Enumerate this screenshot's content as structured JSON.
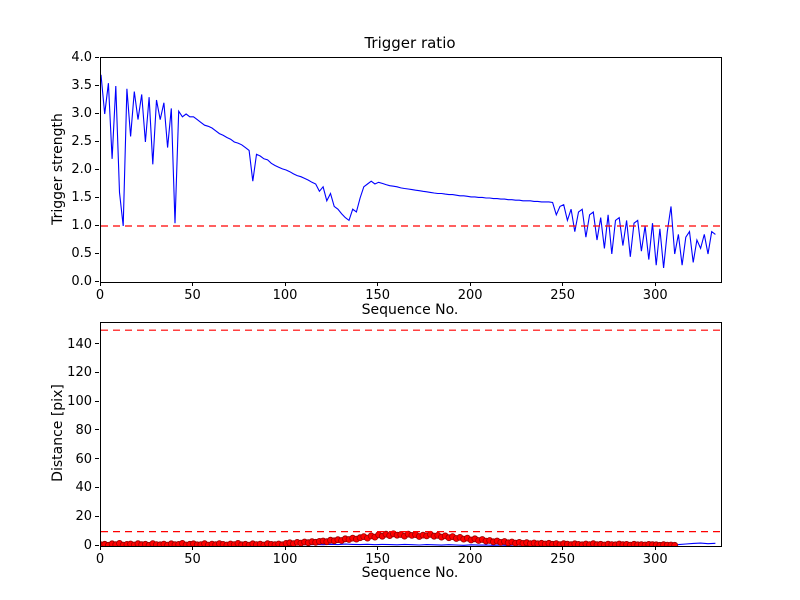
{
  "figure": {
    "background": "#ffffff"
  },
  "chart_data": [
    {
      "type": "line",
      "title": "Trigger ratio",
      "xlabel": "Sequence No.",
      "ylabel": "Trigger strength",
      "xlim": [
        0,
        335
      ],
      "ylim": [
        0,
        4
      ],
      "grid": false,
      "legend": "none",
      "xticks": {
        "values": [
          0,
          50,
          100,
          150,
          200,
          250,
          300
        ],
        "labels": [
          "0",
          "50",
          "100",
          "150",
          "200",
          "250",
          "300"
        ]
      },
      "yticks": {
        "values": [
          0,
          0.5,
          1,
          1.5,
          2,
          2.5,
          3,
          3.5,
          4
        ],
        "labels": [
          "0.0",
          "0.5",
          "1.0",
          "1.5",
          "2.0",
          "2.5",
          "3.0",
          "3.5",
          "4.0"
        ]
      },
      "thresholds": [
        {
          "y": 1.0,
          "color": "#ff0000",
          "style": "dashed"
        }
      ],
      "series": [
        {
          "name": "trigger-strength",
          "style": "line",
          "color": "#0000ff",
          "x_start": 0,
          "x_step": 2,
          "y": [
            3.7,
            3.0,
            3.55,
            2.2,
            3.5,
            1.6,
            1.0,
            3.45,
            2.6,
            3.4,
            2.9,
            3.35,
            2.5,
            3.3,
            2.1,
            3.25,
            2.9,
            3.2,
            2.4,
            3.1,
            1.05,
            3.05,
            2.95,
            3.0,
            2.95,
            2.95,
            2.9,
            2.85,
            2.8,
            2.78,
            2.75,
            2.7,
            2.65,
            2.62,
            2.58,
            2.55,
            2.5,
            2.48,
            2.45,
            2.4,
            2.35,
            1.8,
            2.28,
            2.25,
            2.2,
            2.18,
            2.12,
            2.08,
            2.05,
            2.02,
            2.0,
            1.97,
            1.93,
            1.9,
            1.88,
            1.85,
            1.82,
            1.78,
            1.75,
            1.62,
            1.7,
            1.45,
            1.58,
            1.35,
            1.3,
            1.22,
            1.15,
            1.1,
            1.3,
            1.25,
            1.5,
            1.7,
            1.75,
            1.8,
            1.75,
            1.78,
            1.76,
            1.74,
            1.72,
            1.71,
            1.7,
            1.68,
            1.67,
            1.66,
            1.65,
            1.64,
            1.63,
            1.62,
            1.61,
            1.6,
            1.59,
            1.58,
            1.58,
            1.57,
            1.56,
            1.56,
            1.55,
            1.54,
            1.54,
            1.53,
            1.52,
            1.52,
            1.51,
            1.51,
            1.5,
            1.5,
            1.49,
            1.49,
            1.48,
            1.48,
            1.47,
            1.47,
            1.46,
            1.46,
            1.45,
            1.45,
            1.45,
            1.44,
            1.44,
            1.43,
            1.43,
            1.43,
            1.42,
            1.2,
            1.35,
            1.38,
            1.1,
            1.3,
            0.9,
            1.25,
            1.3,
            0.8,
            1.2,
            1.25,
            0.75,
            1.15,
            0.6,
            1.2,
            0.5,
            1.1,
            1.15,
            0.65,
            1.1,
            0.45,
            1.05,
            1.1,
            0.55,
            1.0,
            0.4,
            1.05,
            0.3,
            0.95,
            0.25,
            0.9,
            1.35,
            0.5,
            0.85,
            0.3,
            0.8,
            0.9,
            0.35,
            0.75,
            0.6,
            0.85,
            0.5,
            0.9,
            0.85
          ]
        }
      ]
    },
    {
      "type": "scatter",
      "title": "",
      "xlabel": "Sequence No.",
      "ylabel": "Distance [pix]",
      "xlim": [
        0,
        335
      ],
      "ylim": [
        0,
        155
      ],
      "grid": false,
      "legend": "none",
      "xticks": {
        "values": [
          0,
          50,
          100,
          150,
          200,
          250,
          300
        ],
        "labels": [
          "0",
          "50",
          "100",
          "150",
          "200",
          "250",
          "300"
        ]
      },
      "yticks": {
        "values": [
          0,
          20,
          40,
          60,
          80,
          100,
          120,
          140
        ],
        "labels": [
          "0",
          "20",
          "40",
          "60",
          "80",
          "100",
          "120",
          "140"
        ]
      },
      "thresholds": [
        {
          "y": 10,
          "color": "#ff0000",
          "style": "dashed"
        },
        {
          "y": 150,
          "color": "#ff0000",
          "style": "dashed"
        }
      ],
      "series": [
        {
          "name": "distance-line",
          "style": "line",
          "color": "#0000ff",
          "x_start": 0,
          "x_step": 4,
          "y": [
            0.5,
            0.4,
            0.6,
            0.3,
            0.5,
            0.7,
            0.4,
            0.6,
            0.5,
            0.3,
            0.6,
            0.4,
            0.7,
            0.5,
            0.4,
            0.6,
            0.3,
            0.5,
            0.6,
            0.4,
            0.7,
            0.5,
            0.6,
            0.8,
            0.5,
            0.9,
            0.7,
            1.0,
            0.8,
            1.1,
            0.9,
            1.2,
            1.0,
            1.3,
            1.1,
            1.0,
            1.2,
            0.9,
            1.1,
            1.0,
            0.8,
            1.1,
            0.9,
            0.7,
            1.0,
            0.8,
            0.6,
            0.9,
            0.7,
            0.5,
            0.8,
            0.6,
            0.7,
            0.5,
            0.6,
            0.4,
            0.7,
            0.5,
            0.6,
            0.4,
            0.5,
            0.6,
            0.4,
            0.5,
            0.3,
            0.6,
            0.4,
            0.5,
            0.6,
            0.4,
            0.5,
            0.3,
            0.6,
            0.4,
            0.5,
            0.7,
            0.5,
            0.8,
            1.0,
            1.4,
            1.8,
            2.0,
            1.6,
            1.9
          ]
        },
        {
          "name": "distance-scatter",
          "style": "scatter",
          "color": "#ff0000",
          "edge": "#990000",
          "x_start": 0,
          "x_step": 2,
          "y": [
            0.8,
            1.2,
            0.5,
            1.5,
            0.9,
            1.8,
            0.6,
            1.1,
            1.4,
            0.7,
            1.6,
            0.9,
            1.2,
            0.5,
            1.7,
            1.0,
            0.8,
            1.3,
            0.6,
            1.5,
            0.9,
            1.1,
            1.8,
            0.7,
            1.2,
            1.5,
            0.8,
            1.0,
            1.6,
            0.6,
            1.3,
            0.9,
            1.7,
            1.1,
            0.7,
            1.4,
            1.0,
            1.8,
            0.8,
            1.2,
            0.6,
            1.5,
            1.0,
            1.3,
            0.7,
            1.6,
            1.1,
            0.9,
            1.4,
            0.8,
            1.8,
            2.2,
            1.6,
            2.5,
            2.0,
            2.8,
            2.3,
            3.0,
            2.6,
            3.2,
            3.5,
            3.0,
            4.0,
            3.6,
            4.4,
            3.8,
            5.0,
            4.5,
            5.5,
            4.8,
            5.8,
            6.5,
            5.5,
            7.0,
            6.2,
            7.8,
            6.8,
            8.2,
            7.2,
            8.5,
            7.5,
            8.0,
            6.9,
            8.3,
            7.4,
            7.9,
            6.6,
            7.6,
            7.0,
            8.1,
            6.8,
            7.4,
            6.2,
            7.0,
            5.8,
            6.5,
            5.2,
            6.0,
            4.8,
            5.5,
            4.2,
            5.0,
            3.8,
            4.5,
            3.4,
            3.8,
            2.9,
            3.5,
            2.5,
            3.1,
            2.2,
            2.8,
            2.0,
            2.5,
            1.8,
            2.3,
            1.6,
            2.1,
            1.5,
            1.9,
            1.4,
            1.9,
            1.2,
            1.7,
            1.0,
            1.6,
            1.3,
            0.9,
            1.5,
            1.1,
            0.8,
            1.4,
            1.0,
            1.6,
            0.9,
            1.2,
            0.7,
            1.3,
            1.0,
            0.8,
            1.4,
            0.9,
            1.1,
            0.6,
            1.2,
            0.8,
            1.0,
            0.7,
            1.1,
            0.9,
            0.8,
            0.5,
            0.9,
            0.6,
            0.7,
            0.5
          ]
        }
      ]
    }
  ]
}
